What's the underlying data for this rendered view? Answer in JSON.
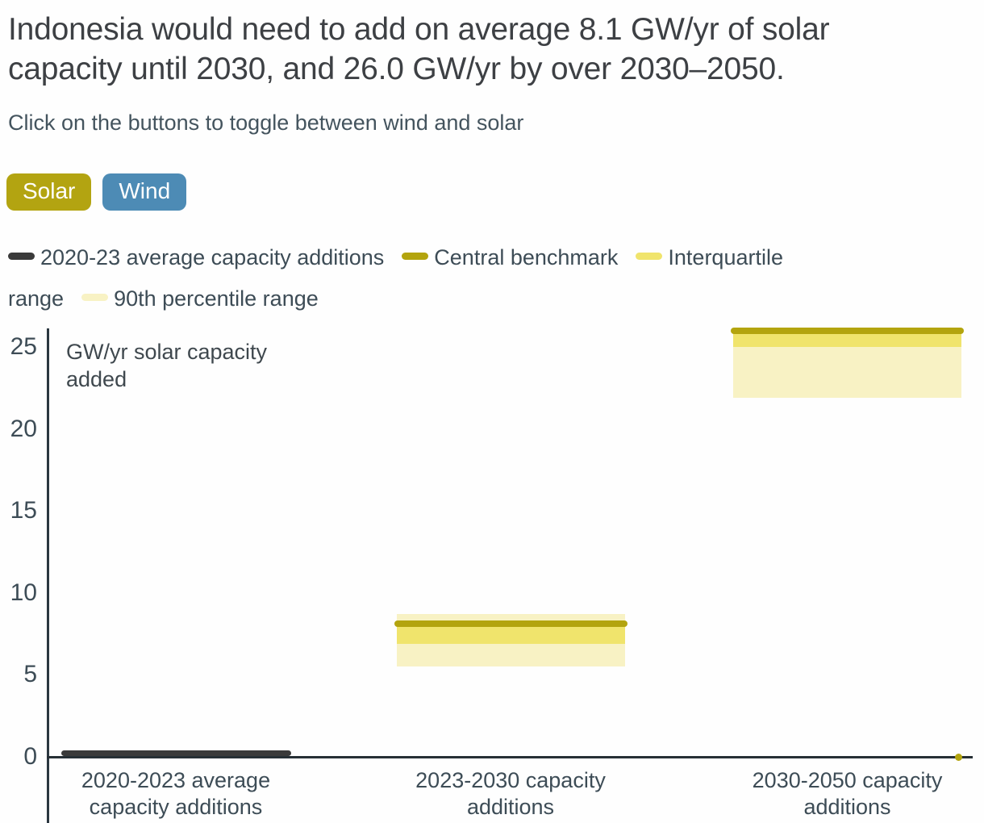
{
  "header": {
    "title": "Indonesia would need to add on average 8.1 GW/yr of solar capacity until 2030, and 26.0 GW/yr by over 2030–2050.",
    "subtitle": "Click on the buttons to toggle between wind and solar"
  },
  "buttons": [
    {
      "label": "Solar",
      "color": "#b3a411",
      "active": true
    },
    {
      "label": "Wind",
      "color": "#4d8bb5",
      "active": false
    }
  ],
  "legend": {
    "items": [
      {
        "label": "2020-23 average capacity additions",
        "color": "#3a3a3a"
      },
      {
        "label": "Central benchmark",
        "color": "#b3a40e"
      },
      {
        "label": "Interquartile range",
        "color": "#f0e46c"
      },
      {
        "label": "90th percentile range",
        "color": "#f8f2c4"
      }
    ]
  },
  "colors": {
    "central_benchmark": "#b3a40e",
    "interquartile": "#f0e46c",
    "p90_range": "#f8f2c4",
    "historical_average": "#3a3a3a",
    "axis": "#2b3740",
    "text": "#3d4c56",
    "solar_button": "#b3a411",
    "wind_button": "#4d8bb5"
  },
  "chart_data": {
    "type": "bar",
    "title": "GW/yr solar capacity added",
    "ylabel": "GW/yr solar capacity added",
    "ylabel_lines": [
      "GW/yr solar capacity",
      "added"
    ],
    "xlabel": "",
    "yticks": [
      0,
      5,
      10,
      15,
      20,
      25
    ],
    "ylim": [
      0,
      26.5
    ],
    "grid": false,
    "legend_position": "top",
    "categories": [
      "2020-2023 average capacity additions",
      "2023-2030 capacity additions",
      "2030-2050 capacity additions"
    ],
    "xlabel_lines": [
      [
        "2020-2023 average",
        "capacity additions"
      ],
      [
        "2023-2030 capacity",
        "additions"
      ],
      [
        "2030-2050 capacity",
        "additions"
      ]
    ],
    "series": [
      {
        "name": "2020-23 average capacity additions",
        "type": "line",
        "color": "#3a3a3a",
        "values": [
          0.2,
          null,
          null
        ]
      },
      {
        "name": "Central benchmark",
        "type": "line",
        "color": "#b3a40e",
        "values": [
          null,
          8.1,
          26.0
        ]
      },
      {
        "name": "Interquartile range",
        "type": "band",
        "color": "#f0e46c",
        "ranges": [
          null,
          [
            6.9,
            8.2
          ],
          [
            25.0,
            26.0
          ]
        ]
      },
      {
        "name": "90th percentile range",
        "type": "band",
        "color": "#f8f2c4",
        "ranges": [
          null,
          [
            5.5,
            8.7
          ],
          [
            21.9,
            26.0
          ]
        ]
      }
    ],
    "zero_marker": {
      "value": 0,
      "color": "#b3a40e"
    }
  }
}
